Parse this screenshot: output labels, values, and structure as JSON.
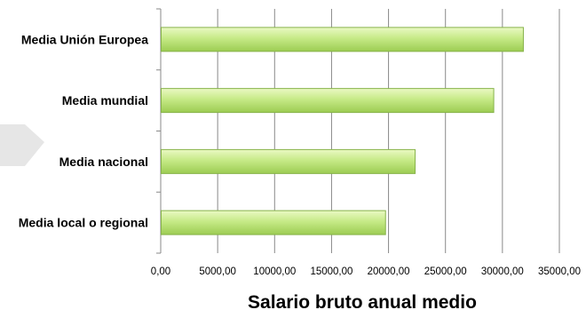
{
  "chart_data": {
    "type": "bar",
    "orientation": "horizontal",
    "categories": [
      "Media local o regional",
      "Media nacional",
      "Media mundial",
      "Media Unión Europea"
    ],
    "values": [
      19700,
      22300,
      29200,
      31800
    ],
    "xlabel": "Salario bruto anual medio",
    "ylabel": "",
    "xlim": [
      0,
      35000
    ],
    "x_ticks": [
      0,
      5000,
      10000,
      15000,
      20000,
      25000,
      30000,
      35000
    ],
    "x_tick_labels": [
      "0,00",
      "5000,00",
      "10000,00",
      "15000,00",
      "20000,00",
      "25000,00",
      "30000,00",
      "35000,00"
    ],
    "grid": "vertical",
    "legend": "none",
    "colors": {
      "bar_fill_light": "#e4f7bb",
      "bar_fill_dark": "#9fd155",
      "bar_border": "#86b24a",
      "grid": "#898989",
      "arrow": "#e6e6e6"
    }
  }
}
